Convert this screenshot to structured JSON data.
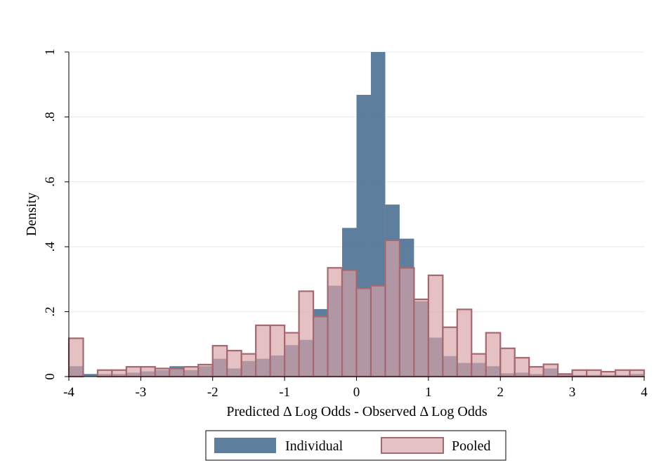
{
  "chart_data": {
    "type": "bar",
    "title": "",
    "xlabel": "Predicted Δ Log Odds - Observed Δ Log Odds",
    "ylabel": "Density",
    "xlim": [
      -4,
      4
    ],
    "ylim": [
      0,
      1
    ],
    "xticks": [
      "-4",
      "-3",
      "-2",
      "-1",
      "0",
      "1",
      "2",
      "3",
      "4"
    ],
    "yticks": [
      "0",
      ".2",
      ".4",
      ".6",
      ".8",
      "1"
    ],
    "grid": "horizontal",
    "legend_position": "bottom",
    "bin_start": -4.0,
    "bin_width": 0.2,
    "series": [
      {
        "name": "Individual",
        "color": "#486c8f",
        "opacity": 0.88,
        "values": [
          0.032,
          0.008,
          0.008,
          0.008,
          0.012,
          0.016,
          0.02,
          0.032,
          0.02,
          0.032,
          0.055,
          0.025,
          0.048,
          0.055,
          0.065,
          0.097,
          0.113,
          0.208,
          0.28,
          0.458,
          0.868,
          1.0,
          0.53,
          0.425,
          0.232,
          0.12,
          0.063,
          0.042,
          0.042,
          0.032,
          0.01,
          0.012,
          0.008,
          0.025,
          0.008,
          0.005,
          0.005,
          0.005,
          0.005,
          0.008,
          0.032
        ]
      },
      {
        "name": "Pooled",
        "color": "#d9a4a8",
        "edge": "#a56870",
        "opacity": 0.68,
        "values": [
          0.118,
          0.0,
          0.02,
          0.02,
          0.03,
          0.03,
          0.025,
          0.025,
          0.03,
          0.037,
          0.095,
          0.08,
          0.07,
          0.158,
          0.158,
          0.135,
          0.263,
          0.185,
          0.335,
          0.328,
          0.272,
          0.28,
          0.42,
          0.335,
          0.238,
          0.312,
          0.152,
          0.207,
          0.07,
          0.135,
          0.087,
          0.058,
          0.03,
          0.038,
          0.008,
          0.02,
          0.02,
          0.015,
          0.02,
          0.02,
          0.045
        ]
      }
    ]
  }
}
